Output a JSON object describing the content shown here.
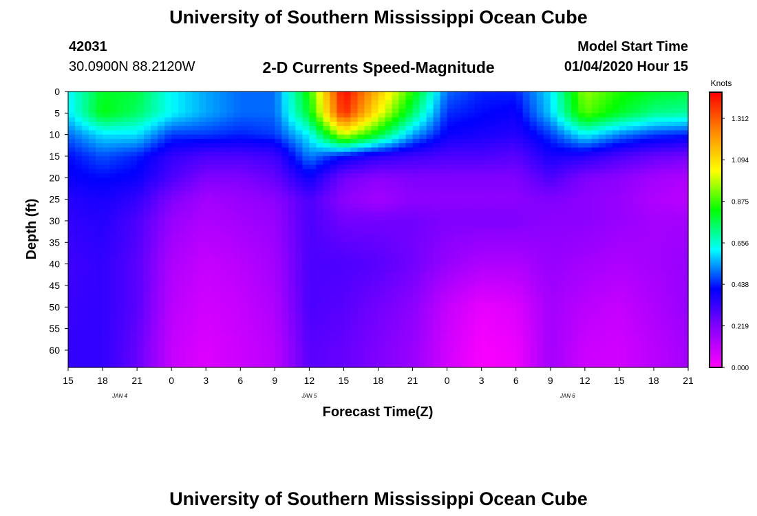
{
  "page": {
    "title_top": "University of Southern Mississippi Ocean Cube",
    "title_bottom": "University of Southern Mississippi Ocean Cube",
    "station_id": "42031",
    "station_coords": "30.0900N 88.2120W",
    "plot_title": "2-D Currents Speed-Magnitude",
    "model_start_label": "Model Start Time",
    "model_start_value": "01/04/2020 Hour 15"
  },
  "chart_data": {
    "type": "heatmap",
    "title": "2-D Currents Speed-Magnitude",
    "xlabel": "Forecast Time(Z)",
    "ylabel": "Depth (ft)",
    "x_tick_labels": [
      "15",
      "18",
      "21",
      "0",
      "3",
      "6",
      "9",
      "12",
      "15",
      "18",
      "21",
      "0",
      "3",
      "6",
      "9",
      "12",
      "15",
      "18",
      "21"
    ],
    "date_labels": [
      {
        "text": "JAN 4",
        "tick_index": 1.5
      },
      {
        "text": "JAN 5",
        "tick_index": 7
      },
      {
        "text": "JAN 6",
        "tick_index": 14.5
      }
    ],
    "y_ticks": [
      0,
      5,
      10,
      15,
      20,
      25,
      30,
      35,
      40,
      45,
      50,
      55,
      60
    ],
    "ylim": [
      0,
      64
    ],
    "yaxis_inverted": true,
    "colorbar": {
      "label": "Knots",
      "ticks": [
        0.0,
        0.219,
        0.438,
        0.656,
        0.875,
        1.094,
        1.312
      ],
      "range": [
        0,
        1.45
      ],
      "colors": [
        "#ff00ff",
        "#8800ff",
        "#0000ff",
        "#00ffff",
        "#00ff00",
        "#ffff00",
        "#ff8800",
        "#ff0000"
      ]
    },
    "depth_rows": [
      0,
      5,
      10,
      15,
      20,
      25,
      30,
      40,
      50,
      60,
      64
    ],
    "time_columns_index": [
      0,
      1,
      2,
      3,
      4,
      5,
      6,
      7,
      8,
      9,
      10,
      11,
      12,
      13,
      14,
      15,
      16,
      17,
      18
    ],
    "speed_knots": [
      [
        0.62,
        0.8,
        0.78,
        0.62,
        0.55,
        0.5,
        0.5,
        0.85,
        1.45,
        1.15,
        0.85,
        0.5,
        0.44,
        0.44,
        0.6,
        0.95,
        0.85,
        0.8,
        0.78
      ],
      [
        0.6,
        0.82,
        0.75,
        0.62,
        0.55,
        0.5,
        0.5,
        0.8,
        1.4,
        1.05,
        0.75,
        0.45,
        0.42,
        0.4,
        0.58,
        0.9,
        0.8,
        0.72,
        0.7
      ],
      [
        0.5,
        0.6,
        0.6,
        0.46,
        0.46,
        0.44,
        0.46,
        0.62,
        1.0,
        0.8,
        0.55,
        0.4,
        0.38,
        0.36,
        0.46,
        0.62,
        0.52,
        0.46,
        0.44
      ],
      [
        0.42,
        0.48,
        0.44,
        0.34,
        0.3,
        0.3,
        0.32,
        0.52,
        0.42,
        0.35,
        0.32,
        0.3,
        0.3,
        0.28,
        0.38,
        0.36,
        0.3,
        0.26,
        0.24
      ],
      [
        0.4,
        0.42,
        0.4,
        0.3,
        0.22,
        0.22,
        0.26,
        0.4,
        0.24,
        0.2,
        0.22,
        0.22,
        0.22,
        0.22,
        0.3,
        0.22,
        0.2,
        0.16,
        0.14
      ],
      [
        0.36,
        0.38,
        0.34,
        0.22,
        0.16,
        0.18,
        0.2,
        0.3,
        0.2,
        0.16,
        0.2,
        0.2,
        0.2,
        0.2,
        0.22,
        0.2,
        0.18,
        0.14,
        0.12
      ],
      [
        0.34,
        0.36,
        0.3,
        0.18,
        0.14,
        0.16,
        0.18,
        0.3,
        0.24,
        0.24,
        0.24,
        0.22,
        0.22,
        0.22,
        0.2,
        0.2,
        0.18,
        0.16,
        0.16
      ],
      [
        0.32,
        0.34,
        0.28,
        0.14,
        0.1,
        0.12,
        0.16,
        0.3,
        0.3,
        0.28,
        0.24,
        0.18,
        0.14,
        0.14,
        0.18,
        0.16,
        0.14,
        0.16,
        0.18
      ],
      [
        0.33,
        0.34,
        0.28,
        0.12,
        0.08,
        0.1,
        0.14,
        0.3,
        0.28,
        0.24,
        0.2,
        0.1,
        0.04,
        0.06,
        0.16,
        0.12,
        0.1,
        0.14,
        0.18
      ],
      [
        0.34,
        0.34,
        0.26,
        0.1,
        0.06,
        0.09,
        0.12,
        0.28,
        0.26,
        0.22,
        0.18,
        0.08,
        0.01,
        0.03,
        0.16,
        0.09,
        0.08,
        0.12,
        0.16
      ],
      [
        0.34,
        0.34,
        0.26,
        0.1,
        0.06,
        0.09,
        0.12,
        0.28,
        0.26,
        0.22,
        0.18,
        0.08,
        0.01,
        0.03,
        0.16,
        0.09,
        0.08,
        0.12,
        0.16
      ]
    ]
  }
}
